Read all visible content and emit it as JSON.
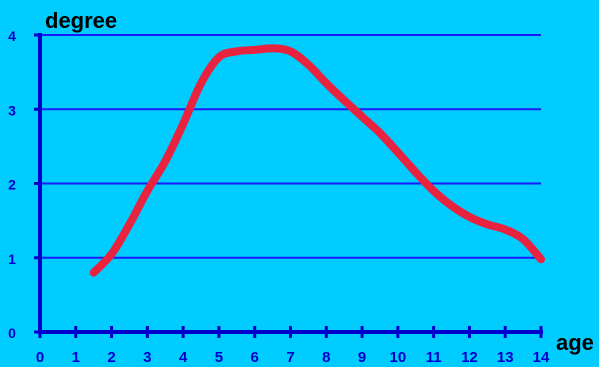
{
  "chart_data": {
    "type": "line",
    "title": "",
    "xlabel": "age",
    "ylabel": "degree",
    "xlim": [
      0,
      14
    ],
    "ylim": [
      0,
      4
    ],
    "x_ticks": [
      "0",
      "1",
      "2",
      "3",
      "4",
      "5",
      "6",
      "7",
      "8",
      "9",
      "10",
      "11",
      "12",
      "13",
      "14"
    ],
    "y_ticks": [
      "0",
      "1",
      "2",
      "3",
      "4"
    ],
    "grid": true,
    "series": [
      {
        "x": [
          1.5,
          2.0,
          2.5,
          3.0,
          3.5,
          4.0,
          4.5,
          5.0,
          5.5,
          6.0,
          6.5,
          7.0,
          7.5,
          8.0,
          8.5,
          9.0,
          9.5,
          10.0,
          10.5,
          11.0,
          11.5,
          12.0,
          12.5,
          13.0,
          13.5,
          14.0
        ],
        "y": [
          0.8,
          1.05,
          1.45,
          1.9,
          2.3,
          2.8,
          3.35,
          3.7,
          3.78,
          3.8,
          3.82,
          3.78,
          3.6,
          3.35,
          3.12,
          2.9,
          2.68,
          2.42,
          2.15,
          1.9,
          1.7,
          1.55,
          1.45,
          1.38,
          1.25,
          0.98
        ],
        "color": "#e8223f"
      }
    ]
  },
  "colors": {
    "background": "#00ccff",
    "axis": "#0000cc",
    "grid": "#1a1aff",
    "line": "#e8223f",
    "text": "#000000",
    "tick_text": "#0000cc"
  }
}
